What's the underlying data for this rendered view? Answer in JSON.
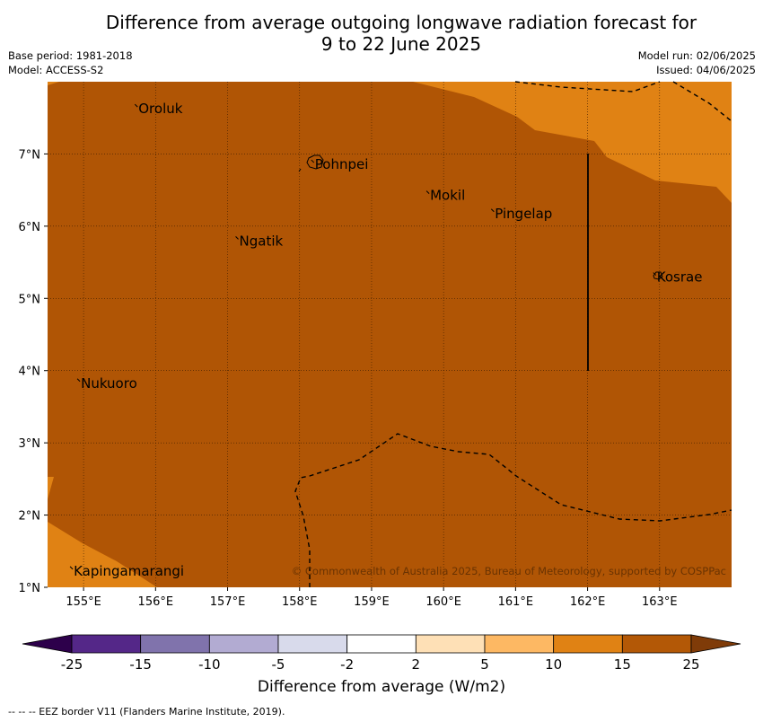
{
  "header": {
    "title_line1": "Difference from average outgoing longwave radiation forecast for",
    "title_line2": "9 to 22 June 2025",
    "base_period": "Base period: 1981-2018",
    "model": "Model: ACCESS-S2",
    "model_run": "Model run: 02/06/2025",
    "issued": "Issued: 04/06/2025"
  },
  "map": {
    "lon_range": [
      154.5,
      164.0
    ],
    "lat_range": [
      1.0,
      8.0
    ],
    "lon_ticks": [
      {
        "value": 155,
        "label": "155°E"
      },
      {
        "value": 156,
        "label": "156°E"
      },
      {
        "value": 157,
        "label": "157°E"
      },
      {
        "value": 158,
        "label": "158°E"
      },
      {
        "value": 159,
        "label": "159°E"
      },
      {
        "value": 160,
        "label": "160°E"
      },
      {
        "value": 161,
        "label": "161°E"
      },
      {
        "value": 162,
        "label": "162°E"
      },
      {
        "value": 163,
        "label": "163°E"
      }
    ],
    "lat_ticks": [
      {
        "value": 1,
        "label": "1°N"
      },
      {
        "value": 2,
        "label": "2°N"
      },
      {
        "value": 3,
        "label": "3°N"
      },
      {
        "value": 4,
        "label": "4°N"
      },
      {
        "value": 5,
        "label": "5°N"
      },
      {
        "value": 6,
        "label": "6°N"
      },
      {
        "value": 7,
        "label": "7°N"
      }
    ],
    "background_color": "#b05505",
    "contour_color": "#e08214",
    "islands": [
      {
        "name": "Oroluk",
        "lon": 155.75,
        "lat": 7.65
      },
      {
        "name": "Pohnpei",
        "lon": 158.2,
        "lat": 6.88
      },
      {
        "name": "Mokil",
        "lon": 159.8,
        "lat": 6.45
      },
      {
        "name": "Pingelap",
        "lon": 160.7,
        "lat": 6.2
      },
      {
        "name": "Ngatik",
        "lon": 157.15,
        "lat": 5.82
      },
      {
        "name": "Kosrae",
        "lon": 162.95,
        "lat": 5.32
      },
      {
        "name": "Nukuoro",
        "lon": 154.95,
        "lat": 3.85
      },
      {
        "name": "Kapingamarangi",
        "lon": 154.85,
        "lat": 1.25
      }
    ],
    "copyright": "© Commonwealth of Australia 2025, Bureau of Meteorology, supported by COSPPac"
  },
  "colorbar": {
    "label": "Difference from average (W/m2)",
    "tick_labels": [
      "-25",
      "-15",
      "-10",
      "-5",
      "-2",
      "2",
      "5",
      "10",
      "15",
      "25"
    ],
    "colors": [
      "#2d004b",
      "#542788",
      "#8073ac",
      "#b2abd2",
      "#d8daeb",
      "#ffffff",
      "#fee0b6",
      "#fdb863",
      "#e08214",
      "#b35806",
      "#7f3b08"
    ]
  },
  "footnote": "--  --  -- EEZ border V11 (Flanders Marine Institute, 2019)."
}
